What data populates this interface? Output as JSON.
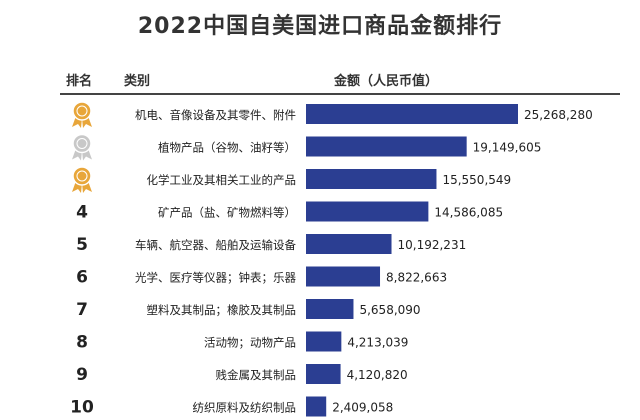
{
  "title": "2022中国自美国进口商品金额排行",
  "headers": {
    "rank": "排名",
    "category": "类别",
    "amount": "金额（人民币值）"
  },
  "colors": {
    "bar": "#2b3e92",
    "medal_gold": "#e8a63a",
    "medal_silver": "#c8c8c8"
  },
  "chart_data": {
    "type": "bar",
    "orientation": "horizontal",
    "title": "2022中国自美国进口商品金额排行",
    "ylabel": "金额（人民币值）",
    "rank_labels": [
      "gold-medal",
      "silver-medal",
      "bronze-medal",
      "4",
      "5",
      "6",
      "7",
      "8",
      "9",
      "10"
    ],
    "categories": [
      "机电、音像设备及其零件、附件",
      "植物产品（谷物、油籽等）",
      "化学工业及其相关工业的产品",
      "矿产品（盐、矿物燃料等）",
      "车辆、航空器、船舶及运输设备",
      "光学、医疗等仪器；钟表；乐器",
      "塑料及其制品；橡胶及其制品",
      "活动物；动物产品",
      "贱金属及其制品",
      "纺织原料及纺织制品"
    ],
    "values": [
      25268280,
      19149605,
      15550549,
      14586085,
      10192231,
      8822663,
      5658090,
      4213039,
      4120820,
      2409058
    ],
    "value_labels": [
      "25,268,280",
      "19,149,605",
      "15,550,549",
      "14,586,085",
      "10,192,231",
      "8,822,663",
      "5,658,090",
      "4,213,039",
      "4,120,820",
      "2,409,058"
    ]
  }
}
